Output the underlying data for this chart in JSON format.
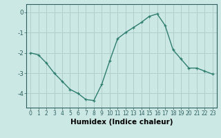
{
  "x": [
    0,
    1,
    2,
    3,
    4,
    5,
    6,
    7,
    8,
    9,
    10,
    11,
    12,
    13,
    14,
    15,
    16,
    17,
    18,
    19,
    20,
    21,
    22,
    23
  ],
  "y": [
    -2.0,
    -2.1,
    -2.5,
    -3.0,
    -3.4,
    -3.8,
    -4.0,
    -4.3,
    -4.35,
    -3.55,
    -2.4,
    -1.3,
    -1.0,
    -0.75,
    -0.5,
    -0.2,
    -0.08,
    -0.65,
    -1.85,
    -2.3,
    -2.75,
    -2.75,
    -2.9,
    -3.05
  ],
  "line_color": "#2d7d6e",
  "marker": "+",
  "marker_size": 3.5,
  "linewidth": 1.0,
  "bg_color": "#cce8e4",
  "grid_color": "#b0ceca",
  "xlabel": "Humidex (Indice chaleur)",
  "xlabel_fontsize": 7.5,
  "yticks": [
    0,
    -1,
    -2,
    -3,
    -4
  ],
  "ylim": [
    -4.7,
    0.4
  ],
  "xlim": [
    -0.5,
    23.5
  ],
  "xtick_fontsize": 5.5,
  "ytick_fontsize": 6.5
}
